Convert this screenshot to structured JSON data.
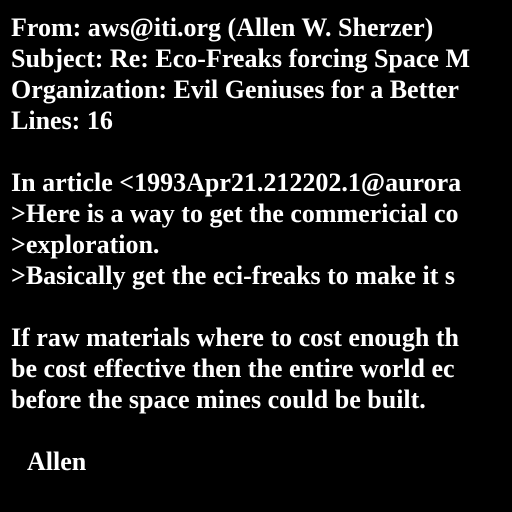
{
  "colors": {
    "background": "#000000",
    "text": "#ffffff"
  },
  "header": {
    "from": "From: aws@iti.org (Allen W. Sherzer)",
    "subject": "Subject: Re: Eco-Freaks forcing Space M",
    "organization": "Organization: Evil Geniuses for a Better",
    "lines": "Lines: 16"
  },
  "quote": {
    "attribution": "In article <1993Apr21.212202.1@aurora",
    "lines": [
      ">Here is a way to get the commericial co",
      ">exploration.",
      ">Basically get the eci-freaks to make it s"
    ]
  },
  "body": {
    "lines": [
      "If raw materials where to cost enough th",
      "be cost effective then the entire world ec",
      "before the space mines could be built."
    ]
  },
  "signature": "Allen"
}
